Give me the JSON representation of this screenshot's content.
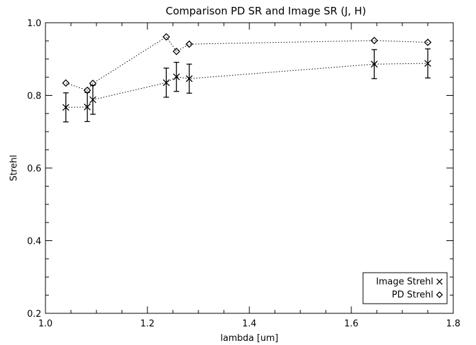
{
  "chart_data": {
    "type": "scatter",
    "title": "Comparison PD SR and Image SR (J, H)",
    "xlabel": "lambda [um]",
    "ylabel": "Strehl",
    "xlim": [
      1.0,
      1.8
    ],
    "ylim": [
      0.2,
      1.0
    ],
    "xticks": [
      "1.0",
      "1.2",
      "1.4",
      "1.6",
      "1.8"
    ],
    "yticks": [
      "0.2",
      "0.4",
      "0.6",
      "0.8",
      "1.0"
    ],
    "grid": false,
    "legend_position": "bottom-right",
    "series": [
      {
        "name": "Image Strehl",
        "marker": "x",
        "x": [
          1.04,
          1.082,
          1.093,
          1.237,
          1.257,
          1.282,
          1.645,
          1.75
        ],
        "y": [
          0.767,
          0.768,
          0.788,
          0.835,
          0.851,
          0.846,
          0.886,
          0.888
        ],
        "yerr": [
          0.04,
          0.04,
          0.04,
          0.04,
          0.04,
          0.04,
          0.04,
          0.04
        ]
      },
      {
        "name": "PD Strehl",
        "marker": "diamond",
        "x": [
          1.04,
          1.082,
          1.093,
          1.237,
          1.257,
          1.282,
          1.645,
          1.75
        ],
        "y": [
          0.834,
          0.814,
          0.833,
          0.961,
          0.921,
          0.941,
          0.951,
          0.946
        ]
      }
    ]
  }
}
